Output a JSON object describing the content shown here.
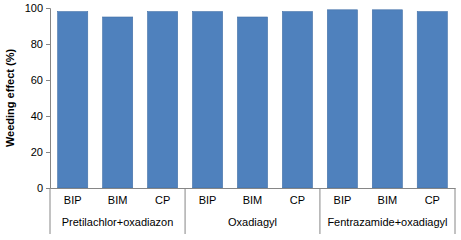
{
  "chart_data": {
    "type": "bar",
    "y_label": "Weeding effect (%)",
    "categories": [
      "BIP",
      "BIM",
      "CP",
      "BIP",
      "BIM",
      "CP",
      "BIP",
      "BIM",
      "CP"
    ],
    "groups": [
      "Pretilachlor+oxadiazon",
      "Oxadiagyl",
      "Fentrazamide+oxadiagyl"
    ],
    "values": [
      98,
      95,
      98,
      98,
      95,
      98,
      99,
      99,
      98
    ],
    "color": "#4f81bd",
    "ylim": [
      0,
      100
    ],
    "yticks": [
      0,
      20,
      40,
      60,
      80,
      100
    ],
    "grid": false
  }
}
